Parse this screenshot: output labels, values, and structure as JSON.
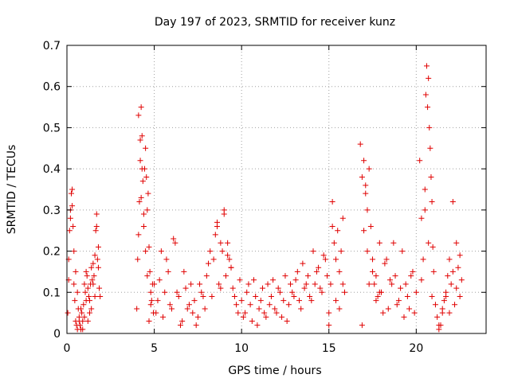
{
  "chart_data": {
    "type": "scatter",
    "title": "Day 197 of 2023, SRMTID for receiver kunz",
    "xlabel": "GPS time / hours",
    "ylabel": "SRMTID / TECUs",
    "xlim": [
      0,
      24
    ],
    "ylim": [
      0,
      0.7
    ],
    "xticks": [
      0,
      5,
      10,
      15,
      20
    ],
    "yticks": [
      0,
      0.1,
      0.2,
      0.3,
      0.4,
      0.5,
      0.6,
      0.7
    ],
    "xtick_labels": [
      "0",
      "5",
      "10",
      "15",
      "20"
    ],
    "ytick_labels": [
      "0",
      "0.1",
      "0.2",
      "0.3",
      "0.4",
      "0.5",
      "0.6",
      "0.7"
    ],
    "grid": true,
    "marker": "+",
    "marker_color": "#e00000",
    "series": [
      {
        "name": "SRMTID",
        "x": [
          0.05,
          0.1,
          0.15,
          0.2,
          0.25,
          0.3,
          0.35,
          0.4,
          0.45,
          0.5,
          0.55,
          0.6,
          0.65,
          0.7,
          0.75,
          0.8,
          0.85,
          0.9,
          0.95,
          1.0,
          1.05,
          1.1,
          1.15,
          1.2,
          1.25,
          1.3,
          1.35,
          1.4,
          1.45,
          1.5,
          1.55,
          1.6,
          1.65,
          1.7,
          1.75,
          1.8,
          1.85,
          1.9,
          0.1,
          0.2,
          0.3,
          0.4,
          0.5,
          0.6,
          0.7,
          0.8,
          0.9,
          1.0,
          1.1,
          1.2,
          1.3,
          1.4,
          1.5,
          1.6,
          1.7,
          1.8,
          4.0,
          4.05,
          4.1,
          4.15,
          4.2,
          4.25,
          4.3,
          4.35,
          4.4,
          4.45,
          4.5,
          4.55,
          4.6,
          4.65,
          4.7,
          4.75,
          4.8,
          4.85,
          4.9,
          4.95,
          4.1,
          4.2,
          4.25,
          4.3,
          4.4,
          4.5,
          4.6,
          4.7,
          4.8,
          5.0,
          5.2,
          5.4,
          5.6,
          5.8,
          6.0,
          6.2,
          6.4,
          6.6,
          6.8,
          7.0,
          7.2,
          7.4,
          7.6,
          7.8,
          8.0,
          8.2,
          8.4,
          8.6,
          8.8,
          9.0,
          9.2,
          9.4,
          9.6,
          9.8,
          5.1,
          5.3,
          5.5,
          5.7,
          5.9,
          6.1,
          6.3,
          6.5,
          6.7,
          6.9,
          7.1,
          7.3,
          7.5,
          7.7,
          7.9,
          8.1,
          8.3,
          8.5,
          8.7,
          8.9,
          9.1,
          9.3,
          9.5,
          9.7,
          9.9,
          8.6,
          8.8,
          9.0,
          9.2,
          9.4,
          10.0,
          10.2,
          10.4,
          10.6,
          10.8,
          11.0,
          11.2,
          11.4,
          11.6,
          11.8,
          12.0,
          12.2,
          12.4,
          12.6,
          12.8,
          13.0,
          13.2,
          13.4,
          13.6,
          13.8,
          14.0,
          14.2,
          14.4,
          14.6,
          14.8,
          10.1,
          10.3,
          10.5,
          10.7,
          10.9,
          11.1,
          11.3,
          11.5,
          11.7,
          11.9,
          12.1,
          12.3,
          12.5,
          12.7,
          12.9,
          13.1,
          13.3,
          13.5,
          13.7,
          13.9,
          14.1,
          14.3,
          14.5,
          14.7,
          14.9,
          15.0,
          15.1,
          15.2,
          15.3,
          15.4,
          15.5,
          15.6,
          15.7,
          15.8,
          15.9,
          15.0,
          15.2,
          15.4,
          15.6,
          15.8,
          16.8,
          16.9,
          17.0,
          17.1,
          17.2,
          17.3,
          17.4,
          17.5,
          17.6,
          17.7,
          17.8,
          17.9,
          18.0,
          18.2,
          18.4,
          18.6,
          18.8,
          19.0,
          19.2,
          19.4,
          19.6,
          19.8,
          20.0,
          16.9,
          17.0,
          17.1,
          17.2,
          17.3,
          17.5,
          17.7,
          17.9,
          18.1,
          18.3,
          18.5,
          18.7,
          18.9,
          19.1,
          19.3,
          19.5,
          19.7,
          19.9,
          20.2,
          20.3,
          20.4,
          20.5,
          20.55,
          20.6,
          20.65,
          20.7,
          20.75,
          20.8,
          20.85,
          20.9,
          20.95,
          21.0,
          20.3,
          20.5,
          20.7,
          20.9,
          21.1,
          21.2,
          21.3,
          21.4,
          21.5,
          21.6,
          21.7,
          21.8,
          21.9,
          22.0,
          22.1,
          22.2,
          22.3,
          22.4,
          22.5,
          22.6,
          21.3,
          21.5,
          21.7,
          21.9,
          22.1,
          22.3,
          22.5
        ],
        "y": [
          0.05,
          0.18,
          0.25,
          0.28,
          0.34,
          0.31,
          0.26,
          0.12,
          0.08,
          0.03,
          0.02,
          0.01,
          0.06,
          0.04,
          0.02,
          0.01,
          0.05,
          0.03,
          0.07,
          0.12,
          0.1,
          0.15,
          0.14,
          0.11,
          0.09,
          0.08,
          0.12,
          0.06,
          0.13,
          0.17,
          0.14,
          0.19,
          0.25,
          0.29,
          0.18,
          0.16,
          0.11,
          0.09,
          0.13,
          0.3,
          0.35,
          0.2,
          0.15,
          0.1,
          0.03,
          0.06,
          0.01,
          0.04,
          0.08,
          0.03,
          0.05,
          0.16,
          0.12,
          0.09,
          0.26,
          0.21,
          0.06,
          0.18,
          0.24,
          0.32,
          0.42,
          0.55,
          0.48,
          0.37,
          0.26,
          0.4,
          0.45,
          0.38,
          0.3,
          0.34,
          0.21,
          0.15,
          0.1,
          0.08,
          0.12,
          0.05,
          0.53,
          0.47,
          0.33,
          0.4,
          0.29,
          0.2,
          0.14,
          0.03,
          0.07,
          0.12,
          0.08,
          0.2,
          0.1,
          0.15,
          0.06,
          0.22,
          0.09,
          0.03,
          0.11,
          0.07,
          0.05,
          0.02,
          0.12,
          0.09,
          0.14,
          0.2,
          0.18,
          0.27,
          0.11,
          0.3,
          0.22,
          0.16,
          0.09,
          0.05,
          0.05,
          0.13,
          0.04,
          0.18,
          0.07,
          0.23,
          0.1,
          0.02,
          0.15,
          0.06,
          0.12,
          0.08,
          0.04,
          0.1,
          0.06,
          0.17,
          0.09,
          0.24,
          0.12,
          0.2,
          0.14,
          0.18,
          0.11,
          0.07,
          0.13,
          0.26,
          0.22,
          0.29,
          0.19,
          0.16,
          0.08,
          0.05,
          0.12,
          0.03,
          0.09,
          0.06,
          0.11,
          0.04,
          0.07,
          0.13,
          0.05,
          0.1,
          0.08,
          0.03,
          0.12,
          0.09,
          0.15,
          0.06,
          0.11,
          0.14,
          0.08,
          0.12,
          0.16,
          0.1,
          0.18,
          0.04,
          0.1,
          0.07,
          0.13,
          0.02,
          0.08,
          0.05,
          0.12,
          0.09,
          0.06,
          0.11,
          0.04,
          0.14,
          0.07,
          0.1,
          0.13,
          0.08,
          0.17,
          0.12,
          0.09,
          0.2,
          0.15,
          0.11,
          0.19,
          0.14,
          0.05,
          0.12,
          0.32,
          0.22,
          0.18,
          0.25,
          0.15,
          0.2,
          0.28,
          0.1,
          0.02,
          0.26,
          0.08,
          0.06,
          0.12,
          0.46,
          0.38,
          0.42,
          0.34,
          0.3,
          0.4,
          0.26,
          0.18,
          0.12,
          0.14,
          0.09,
          0.22,
          0.1,
          0.17,
          0.06,
          0.12,
          0.14,
          0.08,
          0.2,
          0.12,
          0.06,
          0.15,
          0.1,
          0.02,
          0.25,
          0.36,
          0.2,
          0.12,
          0.15,
          0.08,
          0.1,
          0.05,
          0.18,
          0.13,
          0.22,
          0.07,
          0.11,
          0.04,
          0.09,
          0.14,
          0.05,
          0.42,
          0.28,
          0.18,
          0.35,
          0.58,
          0.65,
          0.55,
          0.62,
          0.5,
          0.45,
          0.38,
          0.32,
          0.21,
          0.15,
          0.13,
          0.3,
          0.22,
          0.09,
          0.07,
          0.04,
          0.01,
          0.02,
          0.06,
          0.08,
          0.1,
          0.14,
          0.05,
          0.12,
          0.15,
          0.07,
          0.11,
          0.16,
          0.09,
          0.13,
          0.02,
          0.05,
          0.09,
          0.18,
          0.32,
          0.22,
          0.19
        ]
      }
    ]
  }
}
